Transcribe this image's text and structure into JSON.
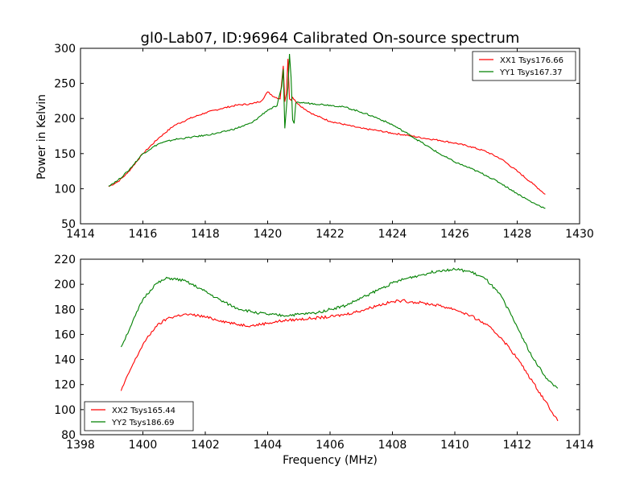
{
  "figure": {
    "title": "gl0-Lab07, ID:96964 Calibrated On-source spectrum",
    "ylabel": "Power in Kelvin",
    "xlabel": "Frequency (MHz)"
  },
  "chart_data": [
    {
      "type": "line",
      "xlim": [
        1414,
        1430
      ],
      "ylim": [
        50,
        300
      ],
      "xticks": [
        1414,
        1416,
        1418,
        1420,
        1422,
        1424,
        1426,
        1428,
        1430
      ],
      "yticks": [
        50,
        100,
        150,
        200,
        250,
        300
      ],
      "grid": false,
      "legend_position": "top-right",
      "series": [
        {
          "name": "XX1 Tsys176.66",
          "color": "#ff0000",
          "x": [
            1414.9,
            1415.2,
            1415.5,
            1416.0,
            1416.5,
            1417.0,
            1417.5,
            1418.0,
            1418.5,
            1419.0,
            1419.5,
            1419.8,
            1420.0,
            1420.2,
            1420.4,
            1420.5,
            1420.55,
            1420.6,
            1420.65,
            1420.7,
            1420.75,
            1420.8,
            1420.9,
            1421.0,
            1421.2,
            1421.5,
            1422.0,
            1422.5,
            1423.0,
            1423.5,
            1424.0,
            1424.5,
            1425.0,
            1425.5,
            1426.0,
            1426.5,
            1427.0,
            1427.5,
            1428.0,
            1428.5,
            1428.9
          ],
          "y": [
            103,
            110,
            122,
            150,
            172,
            190,
            200,
            208,
            214,
            219,
            221,
            225,
            238,
            231,
            228,
            275,
            224,
            235,
            285,
            228,
            226,
            230,
            224,
            220,
            213,
            205,
            196,
            191,
            186,
            183,
            179,
            176,
            172,
            169,
            165,
            160,
            153,
            142,
            125,
            107,
            92
          ]
        },
        {
          "name": "YY1 Tsys167.37",
          "color": "#008000",
          "x": [
            1414.9,
            1415.2,
            1415.5,
            1416.0,
            1416.5,
            1417.0,
            1417.5,
            1418.0,
            1418.5,
            1419.0,
            1419.5,
            1420.0,
            1420.3,
            1420.45,
            1420.5,
            1420.55,
            1420.6,
            1420.65,
            1420.7,
            1420.75,
            1420.8,
            1420.85,
            1420.9,
            1421.0,
            1421.5,
            1422.0,
            1422.5,
            1423.0,
            1423.5,
            1424.0,
            1424.5,
            1425.0,
            1425.5,
            1426.0,
            1426.5,
            1427.0,
            1427.5,
            1428.0,
            1428.5,
            1428.9
          ],
          "y": [
            104,
            112,
            124,
            150,
            164,
            170,
            173,
            176,
            180,
            186,
            194,
            212,
            218,
            245,
            270,
            186,
            214,
            245,
            292,
            258,
            198,
            193,
            222,
            223,
            221,
            219,
            216,
            209,
            201,
            191,
            178,
            164,
            150,
            138,
            129,
            119,
            107,
            93,
            80,
            72
          ]
        }
      ]
    },
    {
      "type": "line",
      "xlim": [
        1398,
        1414
      ],
      "ylim": [
        80,
        220
      ],
      "xticks": [
        1398,
        1400,
        1402,
        1404,
        1406,
        1408,
        1410,
        1412,
        1414
      ],
      "yticks": [
        80,
        100,
        120,
        140,
        160,
        180,
        200,
        220
      ],
      "grid": false,
      "legend_position": "bottom-left",
      "series": [
        {
          "name": "XX2 Tsys165.44",
          "color": "#ff0000",
          "x": [
            1399.3,
            1399.6,
            1400.0,
            1400.4,
            1400.8,
            1401.3,
            1401.8,
            1402.5,
            1403.0,
            1403.5,
            1404.0,
            1404.5,
            1405.0,
            1405.5,
            1406.0,
            1406.5,
            1407.0,
            1407.5,
            1408.0,
            1408.3,
            1408.6,
            1409.0,
            1409.5,
            1410.0,
            1410.5,
            1411.0,
            1411.5,
            1412.0,
            1412.5,
            1413.0,
            1413.3
          ],
          "y": [
            115,
            132,
            152,
            166,
            173,
            176,
            175,
            171,
            168,
            167,
            169,
            171,
            172,
            173,
            174,
            176,
            179,
            183,
            186,
            187,
            186,
            185,
            183,
            180,
            175,
            168,
            157,
            141,
            122,
            103,
            91
          ]
        },
        {
          "name": "YY2 Tsys186.69",
          "color": "#008000",
          "x": [
            1399.3,
            1399.6,
            1400.0,
            1400.4,
            1400.8,
            1401.3,
            1401.8,
            1402.5,
            1403.0,
            1403.5,
            1404.0,
            1404.5,
            1405.0,
            1405.5,
            1406.0,
            1406.5,
            1407.0,
            1407.5,
            1408.0,
            1408.5,
            1409.0,
            1409.5,
            1410.0,
            1410.5,
            1411.0,
            1411.5,
            1412.0,
            1412.5,
            1413.0,
            1413.3
          ],
          "y": [
            150,
            166,
            188,
            200,
            205,
            203,
            197,
            187,
            181,
            178,
            176,
            175,
            176,
            177,
            180,
            183,
            189,
            195,
            201,
            205,
            208,
            211,
            212,
            210,
            204,
            190,
            166,
            141,
            123,
            117
          ]
        }
      ]
    }
  ]
}
